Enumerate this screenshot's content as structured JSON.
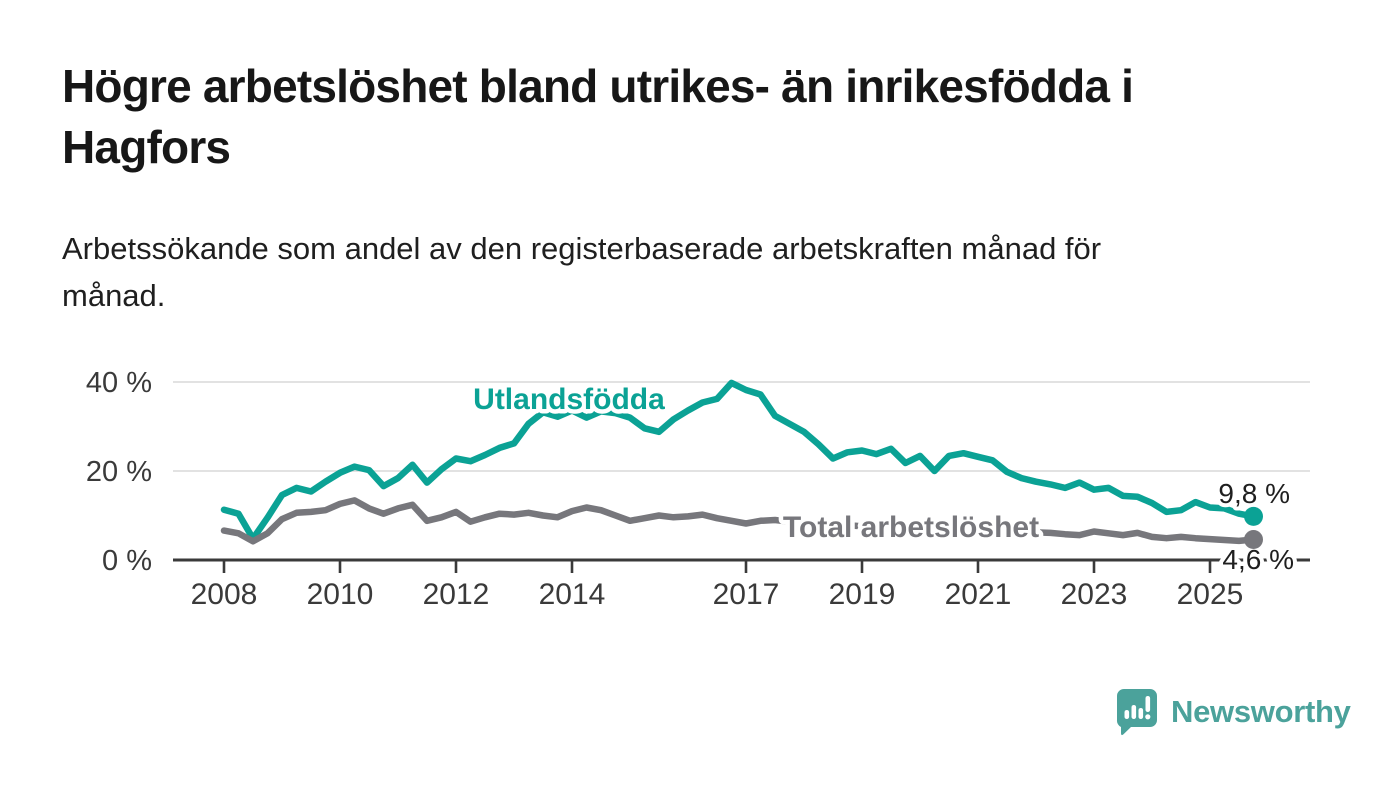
{
  "header": {
    "title": "Högre arbetslöshet bland utrikes- än inrikesfödda i Hagfors",
    "subtitle": "Arbetssökande som andel av den registerbaserade arbetskraften månad för månad."
  },
  "chart_data": {
    "type": "line",
    "title": "Högre arbetslöshet bland utrikes- än inrikesfödda i Hagfors",
    "subtitle": "Arbetssökande som andel av den registerbaserade arbetskraften månad för månad.",
    "xlabel": "",
    "ylabel": "",
    "unit": "%",
    "xlim": [
      2007.9,
      2026.7
    ],
    "ylim": [
      0,
      44
    ],
    "grid": "horizontal-gridlines-at-20-and-40",
    "legend_position": "inline-labels-on-lines",
    "x_ticks": [
      2008,
      2010,
      2012,
      2014,
      2017,
      2019,
      2021,
      2023,
      2025
    ],
    "y_ticks": [
      {
        "value": 0,
        "label": "0 %"
      },
      {
        "value": 20,
        "label": "20 %"
      },
      {
        "value": 40,
        "label": "40 %"
      }
    ],
    "series": [
      {
        "name": "Utlandsfödda",
        "color": "#0ba295",
        "end_label": "9,8 %",
        "last_value": 9.8,
        "points": [
          [
            2008.0,
            11.3
          ],
          [
            2008.25,
            10.4
          ],
          [
            2008.5,
            4.8
          ],
          [
            2008.75,
            9.5
          ],
          [
            2009.0,
            14.6
          ],
          [
            2009.25,
            16.2
          ],
          [
            2009.5,
            15.4
          ],
          [
            2009.75,
            17.6
          ],
          [
            2010.0,
            19.6
          ],
          [
            2010.25,
            21.0
          ],
          [
            2010.5,
            20.2
          ],
          [
            2010.75,
            16.6
          ],
          [
            2011.0,
            18.4
          ],
          [
            2011.25,
            21.4
          ],
          [
            2011.5,
            17.4
          ],
          [
            2011.75,
            20.4
          ],
          [
            2012.0,
            22.8
          ],
          [
            2012.25,
            22.2
          ],
          [
            2012.5,
            23.6
          ],
          [
            2012.75,
            25.2
          ],
          [
            2013.0,
            26.2
          ],
          [
            2013.25,
            30.6
          ],
          [
            2013.5,
            33.2
          ],
          [
            2013.75,
            32.2
          ],
          [
            2014.0,
            33.6
          ],
          [
            2014.25,
            32.0
          ],
          [
            2014.5,
            33.4
          ],
          [
            2014.75,
            33.0
          ],
          [
            2015.0,
            32.0
          ],
          [
            2015.25,
            29.6
          ],
          [
            2015.5,
            28.8
          ],
          [
            2015.75,
            31.6
          ],
          [
            2016.0,
            33.6
          ],
          [
            2016.25,
            35.4
          ],
          [
            2016.5,
            36.2
          ],
          [
            2016.75,
            39.8
          ],
          [
            2017.0,
            38.2
          ],
          [
            2017.25,
            37.2
          ],
          [
            2017.5,
            32.4
          ],
          [
            2017.75,
            30.6
          ],
          [
            2018.0,
            28.8
          ],
          [
            2018.25,
            26.0
          ],
          [
            2018.5,
            22.8
          ],
          [
            2018.75,
            24.2
          ],
          [
            2019.0,
            24.6
          ],
          [
            2019.25,
            23.8
          ],
          [
            2019.5,
            25.0
          ],
          [
            2019.75,
            21.8
          ],
          [
            2020.0,
            23.4
          ],
          [
            2020.25,
            20.0
          ],
          [
            2020.5,
            23.4
          ],
          [
            2020.75,
            24.0
          ],
          [
            2021.0,
            23.2
          ],
          [
            2021.25,
            22.4
          ],
          [
            2021.5,
            19.8
          ],
          [
            2021.75,
            18.4
          ],
          [
            2022.0,
            17.6
          ],
          [
            2022.25,
            17.0
          ],
          [
            2022.5,
            16.2
          ],
          [
            2022.75,
            17.4
          ],
          [
            2023.0,
            15.8
          ],
          [
            2023.25,
            16.2
          ],
          [
            2023.5,
            14.4
          ],
          [
            2023.75,
            14.2
          ],
          [
            2024.0,
            12.8
          ],
          [
            2024.25,
            10.8
          ],
          [
            2024.5,
            11.2
          ],
          [
            2024.75,
            13.0
          ],
          [
            2025.0,
            11.8
          ],
          [
            2025.25,
            11.6
          ],
          [
            2025.5,
            10.4
          ],
          [
            2025.75,
            9.8
          ]
        ]
      },
      {
        "name": "Total arbetslöshet",
        "color": "#77777c",
        "end_label": "4,6 %",
        "last_value": 4.6,
        "points": [
          [
            2008.0,
            6.6
          ],
          [
            2008.25,
            6.0
          ],
          [
            2008.5,
            4.2
          ],
          [
            2008.75,
            6.0
          ],
          [
            2009.0,
            9.2
          ],
          [
            2009.25,
            10.6
          ],
          [
            2009.5,
            10.8
          ],
          [
            2009.75,
            11.2
          ],
          [
            2010.0,
            12.6
          ],
          [
            2010.25,
            13.4
          ],
          [
            2010.5,
            11.6
          ],
          [
            2010.75,
            10.4
          ],
          [
            2011.0,
            11.6
          ],
          [
            2011.25,
            12.4
          ],
          [
            2011.5,
            8.8
          ],
          [
            2011.75,
            9.6
          ],
          [
            2012.0,
            10.8
          ],
          [
            2012.25,
            8.6
          ],
          [
            2012.5,
            9.6
          ],
          [
            2012.75,
            10.4
          ],
          [
            2013.0,
            10.2
          ],
          [
            2013.25,
            10.6
          ],
          [
            2013.5,
            10.0
          ],
          [
            2013.75,
            9.6
          ],
          [
            2014.0,
            11.0
          ],
          [
            2014.25,
            11.8
          ],
          [
            2014.5,
            11.2
          ],
          [
            2014.75,
            10.0
          ],
          [
            2015.0,
            8.8
          ],
          [
            2015.25,
            9.4
          ],
          [
            2015.5,
            10.0
          ],
          [
            2015.75,
            9.6
          ],
          [
            2016.0,
            9.8
          ],
          [
            2016.25,
            10.2
          ],
          [
            2016.5,
            9.4
          ],
          [
            2016.75,
            8.8
          ],
          [
            2017.0,
            8.2
          ],
          [
            2017.25,
            8.8
          ],
          [
            2017.5,
            9.0
          ],
          [
            2017.75,
            8.6
          ],
          [
            2018.0,
            8.8
          ],
          [
            2018.25,
            8.4
          ],
          [
            2018.5,
            8.0
          ],
          [
            2018.75,
            7.8
          ],
          [
            2019.0,
            7.6
          ],
          [
            2019.25,
            7.4
          ],
          [
            2019.5,
            7.6
          ],
          [
            2019.75,
            7.2
          ],
          [
            2020.0,
            7.4
          ],
          [
            2020.25,
            7.8
          ],
          [
            2020.5,
            7.6
          ],
          [
            2020.75,
            7.2
          ],
          [
            2021.0,
            7.0
          ],
          [
            2021.25,
            6.8
          ],
          [
            2021.5,
            6.6
          ],
          [
            2021.75,
            6.4
          ],
          [
            2022.0,
            6.2
          ],
          [
            2022.25,
            6.1
          ],
          [
            2022.5,
            5.8
          ],
          [
            2022.75,
            5.6
          ],
          [
            2023.0,
            6.4
          ],
          [
            2023.25,
            6.0
          ],
          [
            2023.5,
            5.6
          ],
          [
            2023.75,
            6.1
          ],
          [
            2024.0,
            5.2
          ],
          [
            2024.25,
            4.9
          ],
          [
            2024.5,
            5.2
          ],
          [
            2024.75,
            4.9
          ],
          [
            2025.0,
            4.7
          ],
          [
            2025.25,
            4.5
          ],
          [
            2025.5,
            4.3
          ],
          [
            2025.75,
            4.6
          ]
        ]
      }
    ]
  },
  "footer": {
    "brand": "Newsworthy",
    "brand_color": "#4ba29b"
  },
  "colors": {
    "background": "#ffffff",
    "title_text": "#171717",
    "axis": "#3a3a3a",
    "gridline": "#d8d8d8",
    "tick_label": "#3a3a3a",
    "value_label": "#1f1f1f",
    "series_foreign_born": "#0ba295",
    "series_total": "#77777c"
  }
}
